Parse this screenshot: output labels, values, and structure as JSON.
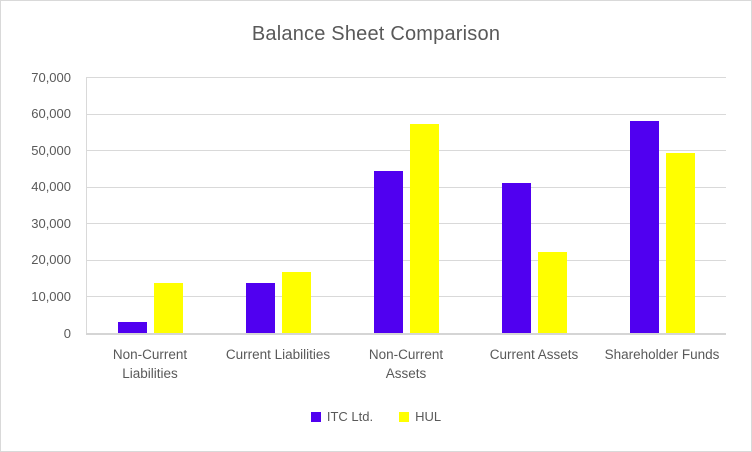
{
  "chart_data": {
    "type": "bar",
    "title": "Balance Sheet Comparison",
    "categories": [
      "Non-Current Liabilities",
      "Current Liabilities",
      "Non-Current Assets",
      "Current Assets",
      "Shareholder Funds"
    ],
    "series": [
      {
        "name": "ITC Ltd.",
        "color": "#5000F0",
        "values": [
          3000,
          13700,
          44300,
          41100,
          57900
        ]
      },
      {
        "name": "HUL",
        "color": "#FFFF00",
        "values": [
          13600,
          16700,
          57200,
          22200,
          49300
        ]
      }
    ],
    "ylim": [
      0,
      70000
    ],
    "ytick_step": 10000,
    "ytick_labels": [
      "0",
      "10,000",
      "20,000",
      "30,000",
      "40,000",
      "50,000",
      "60,000",
      "70,000"
    ],
    "grid": true,
    "legend_position": "bottom",
    "xlabel": "",
    "ylabel": ""
  },
  "colors": {
    "background": "#FFFFFF",
    "border": "#D9D9D9",
    "gridline": "#D9D9D9",
    "axis_line": "#D5D5D5",
    "text": "#595959"
  }
}
